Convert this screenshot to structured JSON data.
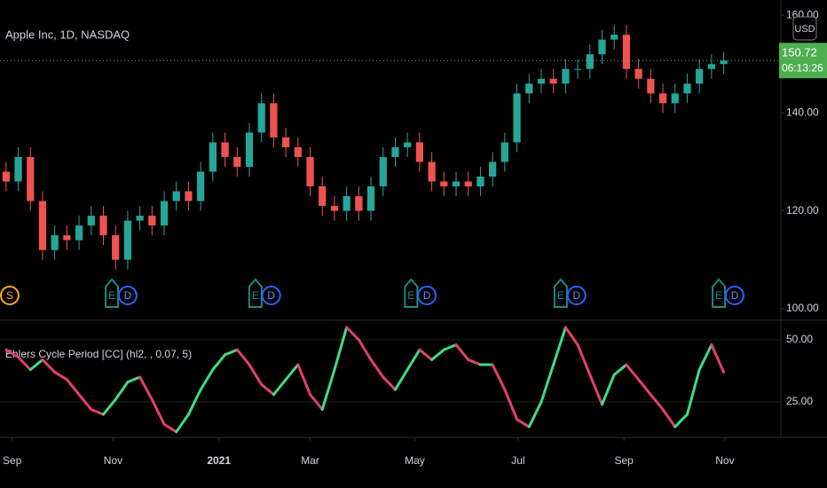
{
  "chart_data": [
    {
      "type": "candlestick",
      "title": "Apple Inc, 1D, NASDAQ",
      "currency": "USD",
      "open": [
        128,
        126,
        131,
        122,
        112,
        115,
        114,
        117,
        119,
        115,
        110,
        118,
        119,
        117,
        122,
        124,
        122,
        128,
        134,
        131,
        129,
        136,
        142,
        135,
        133,
        131,
        125,
        121,
        120,
        123,
        120,
        125,
        131,
        133,
        134,
        130,
        126,
        125,
        126,
        125,
        127,
        130,
        134,
        144,
        146,
        147,
        146,
        149,
        149,
        152,
        155,
        156,
        149,
        147,
        144,
        142,
        144,
        146,
        149,
        150
      ],
      "high": [
        130,
        133,
        133,
        124,
        117,
        117,
        119,
        121,
        121,
        117,
        120,
        121,
        121,
        124,
        126,
        126,
        130,
        136,
        136,
        133,
        138,
        144,
        144,
        137,
        135,
        133,
        127,
        123,
        125,
        125,
        127,
        133,
        135,
        136,
        136,
        132,
        128,
        128,
        128,
        129,
        132,
        136,
        146,
        148,
        149,
        149,
        151,
        151,
        154,
        157,
        158,
        158,
        151,
        149,
        146,
        146,
        148,
        151,
        152,
        152.5
      ],
      "low": [
        124,
        124,
        120,
        110,
        110,
        112,
        112,
        115,
        113,
        108,
        108,
        116,
        115,
        115,
        120,
        120,
        120,
        126,
        129,
        127,
        127,
        134,
        133,
        131,
        129,
        123,
        119,
        118,
        118,
        118,
        118,
        123,
        129,
        131,
        128,
        124,
        123,
        123,
        123,
        123,
        125,
        128,
        132,
        142,
        144,
        144,
        144,
        147,
        147,
        150,
        153,
        147,
        145,
        142,
        140,
        140,
        142,
        144,
        147,
        148
      ],
      "close": [
        126,
        131,
        122,
        112,
        115,
        114,
        117,
        119,
        115,
        110,
        118,
        119,
        117,
        122,
        124,
        122,
        128,
        134,
        131,
        129,
        136,
        142,
        135,
        133,
        131,
        125,
        121,
        120,
        123,
        120,
        125,
        131,
        133,
        134,
        130,
        126,
        125,
        126,
        125,
        127,
        130,
        134,
        144,
        146,
        147,
        146,
        149,
        149,
        152,
        155,
        156,
        149,
        147,
        144,
        142,
        144,
        146,
        149,
        150,
        150.72
      ],
      "up_color": "#26a69a",
      "down_color": "#ef5350",
      "last_price": 150.72,
      "countdown": "06:13:26",
      "last_color": "#4caf50",
      "ylim": [
        97.8,
        163.1
      ],
      "yticks": [
        {
          "value": 100,
          "label": "100.00"
        },
        {
          "value": 120,
          "label": "120.00"
        },
        {
          "value": 140,
          "label": "140.00"
        },
        {
          "value": 160,
          "label": "160.00"
        }
      ],
      "xlim": [
        0,
        64.2
      ],
      "xticks": [
        {
          "value": 1.0,
          "label": "Sep"
        },
        {
          "value": 9.3,
          "label": "Nov"
        },
        {
          "value": 18.0,
          "label": "2021"
        },
        {
          "value": 25.5,
          "label": "Mar"
        },
        {
          "value": 34.1,
          "label": "May"
        },
        {
          "value": 42.6,
          "label": "Jul"
        },
        {
          "value": 51.3,
          "label": "Sep"
        },
        {
          "value": 59.6,
          "label": "Nov"
        }
      ],
      "events": [
        {
          "x": 0.8,
          "label": "S",
          "color": "#f5a623"
        },
        {
          "x": 9.2,
          "label": "E",
          "color": "#1b8a80"
        },
        {
          "x": 10.5,
          "label": "D",
          "color": "#2962ff"
        },
        {
          "x": 21.0,
          "label": "E",
          "color": "#1b8a80"
        },
        {
          "x": 22.3,
          "label": "D",
          "color": "#2962ff"
        },
        {
          "x": 33.8,
          "label": "E",
          "color": "#1b8a80"
        },
        {
          "x": 35.1,
          "label": "D",
          "color": "#2962ff"
        },
        {
          "x": 46.1,
          "label": "E",
          "color": "#1b8a80"
        },
        {
          "x": 47.4,
          "label": "D",
          "color": "#2962ff"
        },
        {
          "x": 59.1,
          "label": "E",
          "color": "#1b8a80"
        },
        {
          "x": 60.4,
          "label": "D",
          "color": "#2962ff"
        }
      ]
    },
    {
      "type": "line",
      "title": "Ehlers Cycle Period [CC] (hl2, , 0.07, 5)",
      "values": [
        46,
        43,
        38,
        42,
        37,
        34,
        28,
        22,
        20,
        26,
        33,
        35,
        26,
        16,
        13,
        20,
        30,
        38,
        44,
        46,
        40,
        32,
        28,
        34,
        40,
        28,
        22,
        38,
        55,
        50,
        42,
        35,
        30,
        38,
        46,
        42,
        46,
        48,
        42,
        40,
        40,
        30,
        18,
        15,
        25,
        40,
        55,
        48,
        36,
        24,
        36,
        40,
        34,
        28,
        22,
        15,
        20,
        38,
        48,
        37
      ],
      "up_color": "#3ddc84",
      "down_color": "#e2406a",
      "ylim": [
        11.1,
        57.5
      ],
      "yticks": [
        {
          "value": 50,
          "label": "50.00"
        },
        {
          "value": 25,
          "label": "25.00"
        }
      ],
      "grid": true
    }
  ]
}
